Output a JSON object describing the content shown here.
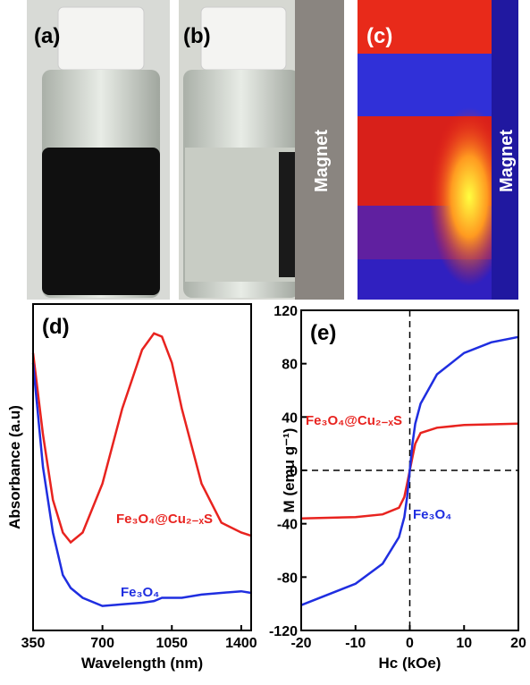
{
  "photos": [
    {
      "label": "(a)"
    },
    {
      "label": "(b)",
      "annotation": "Magnet"
    },
    {
      "label": "(c)",
      "annotation": "Magnet"
    }
  ],
  "chart_data": [
    {
      "type": "line",
      "panel_label": "(d)",
      "x_label": "Wavelength (nm)",
      "y_label": "Absorbance (a.u)",
      "x": [
        350,
        400,
        450,
        500,
        540,
        600,
        700,
        800,
        900,
        960,
        1000,
        1050,
        1100,
        1200,
        1300,
        1400,
        1450
      ],
      "xlim": [
        350,
        1450
      ],
      "xticks": [
        350,
        700,
        1050,
        1400
      ],
      "ylim": [
        0,
        1
      ],
      "series": [
        {
          "name": "Fe₃O₄@Cu₂₋ₓS",
          "color": "#e8231f",
          "values": [
            0.85,
            0.6,
            0.4,
            0.3,
            0.27,
            0.3,
            0.45,
            0.68,
            0.86,
            0.91,
            0.9,
            0.82,
            0.68,
            0.45,
            0.33,
            0.3,
            0.29
          ]
        },
        {
          "name": "Fe₃O₄",
          "color": "#1f2ee0",
          "values": [
            0.82,
            0.5,
            0.3,
            0.17,
            0.13,
            0.1,
            0.075,
            0.08,
            0.085,
            0.09,
            0.1,
            0.1,
            0.1,
            0.11,
            0.115,
            0.12,
            0.115
          ]
        }
      ]
    },
    {
      "type": "line",
      "panel_label": "(e)",
      "x_label": "Hc (kOe)",
      "y_label": "M (emu g⁻¹)",
      "x": [
        -20,
        -10,
        -5,
        -2,
        -1,
        -0.5,
        0,
        0.5,
        1,
        2,
        5,
        10,
        15,
        20
      ],
      "xlim": [
        -20,
        20
      ],
      "xticks": [
        -20,
        -10,
        0,
        10,
        20
      ],
      "ylim": [
        -120,
        120
      ],
      "yticks": [
        -120,
        -80,
        -40,
        0,
        40,
        80,
        120
      ],
      "series": [
        {
          "name": "Fe₃O₄@Cu₂₋ₓS",
          "color": "#e8231f",
          "values": [
            -36,
            -35,
            -33,
            -28,
            -20,
            -10,
            0,
            10,
            20,
            28,
            32,
            34,
            34.5,
            35
          ]
        },
        {
          "name": "Fe₃O₄",
          "color": "#1f2ee0",
          "values": [
            -101,
            -85,
            -70,
            -50,
            -35,
            -20,
            0,
            20,
            35,
            50,
            72,
            88,
            96,
            100
          ]
        }
      ]
    }
  ]
}
